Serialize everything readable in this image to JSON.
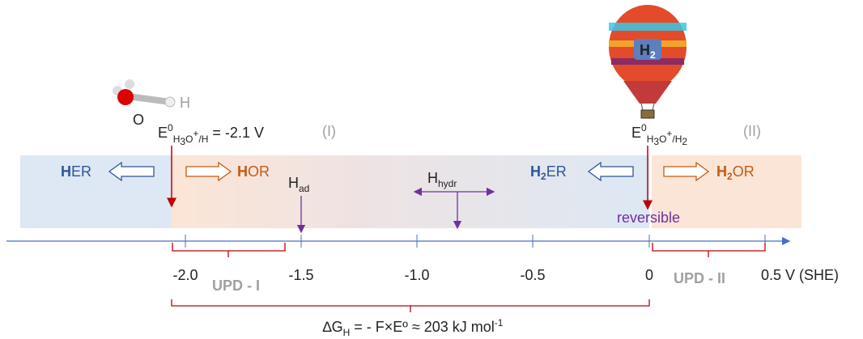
{
  "molecule": {
    "oxygen": "O",
    "hydrogen": "H"
  },
  "balloon": {
    "label": [
      "H",
      "2"
    ]
  },
  "left_potential": {
    "parts": [
      "E",
      "0",
      "H",
      "3",
      "O",
      "+",
      "/H",
      " = -2.1 V"
    ],
    "region": "(I)"
  },
  "right_potential": {
    "parts": [
      "E",
      "0",
      "H",
      "3",
      "O",
      "+",
      "/H",
      "2"
    ],
    "region": "(II)"
  },
  "reactions": {
    "her": [
      "H",
      "ER"
    ],
    "hor": [
      "H",
      "OR"
    ],
    "h2er": [
      "H",
      "2",
      "ER"
    ],
    "h2or": [
      "H",
      "2",
      "OR"
    ]
  },
  "species": {
    "adsorbed": [
      "H",
      "ad"
    ],
    "hydrated": [
      "H",
      "hydr"
    ],
    "reversible": "reversible"
  },
  "axis": {
    "ticks": [
      "-2.0",
      "-1.5",
      "-1.0",
      "-0.5",
      "0"
    ],
    "end_label": "0.5 V (SHE)"
  },
  "upd": {
    "first": "UPD - I",
    "second": "UPD - II"
  },
  "free_energy": {
    "parts": [
      "∆G",
      "H",
      " = - F×Eº ≈ 203 kJ mol",
      "-1"
    ]
  }
}
